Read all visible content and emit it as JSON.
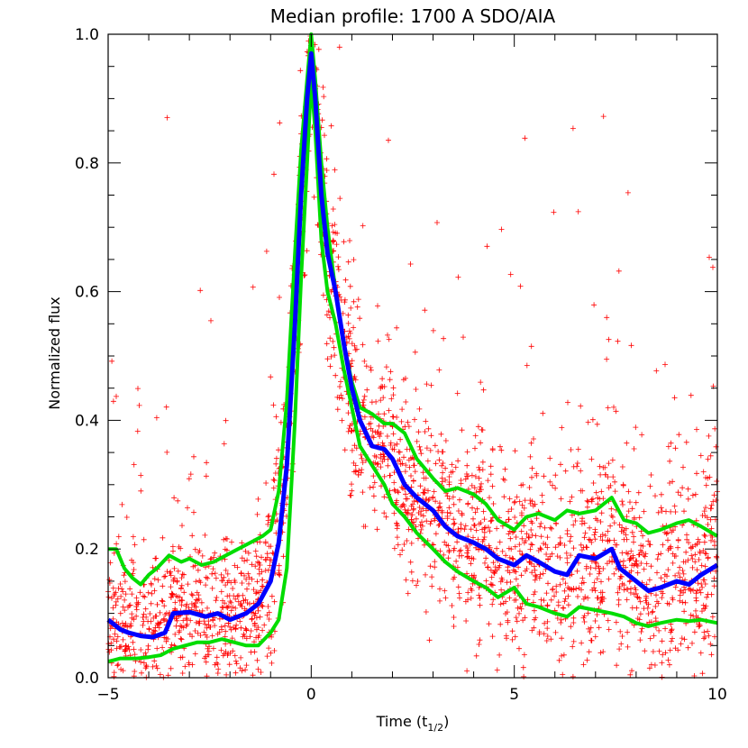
{
  "chart_data": {
    "type": "line",
    "title": "Median profile: 1700 A SDO/AIA",
    "xlabel_main": "Time (t",
    "xlabel_sub": "1/2",
    "xlabel_close": ")",
    "ylabel": "Normalized flux",
    "xlim": [
      -5,
      10
    ],
    "ylim": [
      0.0,
      1.0
    ],
    "x_ticks": [
      "−5",
      "0",
      "5",
      "10"
    ],
    "x_tick_values": [
      -5,
      0,
      5,
      10
    ],
    "y_ticks": [
      "0.0",
      "0.2",
      "0.4",
      "0.6",
      "0.8",
      "1.0"
    ],
    "y_tick_values": [
      0.0,
      0.2,
      0.4,
      0.6,
      0.8,
      1.0
    ],
    "grid": false,
    "series": [
      {
        "color": "#0000ff",
        "x": [
          -5.0,
          -4.7,
          -4.5,
          -4.2,
          -3.9,
          -3.6,
          -3.4,
          -3.0,
          -2.6,
          -2.3,
          -2.0,
          -1.6,
          -1.3,
          -1.0,
          -0.8,
          -0.6,
          -0.4,
          -0.25,
          -0.1,
          0.0,
          0.1,
          0.25,
          0.4,
          0.6,
          0.8,
          1.0,
          1.2,
          1.5,
          1.8,
          2.0,
          2.3,
          2.6,
          3.0,
          3.3,
          3.6,
          4.0,
          4.3,
          4.6,
          5.0,
          5.3,
          5.6,
          6.0,
          6.3,
          6.6,
          7.0,
          7.4,
          7.6,
          8.0,
          8.3,
          8.6,
          9.0,
          9.3,
          9.6,
          10.0
        ],
        "y": [
          0.09,
          0.075,
          0.07,
          0.065,
          0.063,
          0.07,
          0.1,
          0.102,
          0.095,
          0.1,
          0.09,
          0.1,
          0.115,
          0.15,
          0.21,
          0.33,
          0.55,
          0.75,
          0.9,
          0.97,
          0.9,
          0.75,
          0.66,
          0.6,
          0.52,
          0.45,
          0.4,
          0.36,
          0.355,
          0.34,
          0.3,
          0.28,
          0.26,
          0.235,
          0.22,
          0.21,
          0.2,
          0.185,
          0.175,
          0.19,
          0.18,
          0.165,
          0.16,
          0.19,
          0.185,
          0.2,
          0.17,
          0.15,
          0.135,
          0.14,
          0.15,
          0.145,
          0.16,
          0.175
        ]
      },
      {
        "color": "#00dd00",
        "x": [
          -5.0,
          -4.8,
          -4.6,
          -4.4,
          -4.2,
          -4.0,
          -3.8,
          -3.5,
          -3.2,
          -3.0,
          -2.7,
          -2.4,
          -2.1,
          -1.8,
          -1.5,
          -1.2,
          -1.0,
          -0.8,
          -0.6,
          -0.4,
          -0.25,
          -0.1,
          0.0,
          0.1,
          0.25,
          0.4,
          0.6,
          0.8,
          1.0,
          1.2,
          1.5,
          1.8,
          2.0,
          2.3,
          2.6,
          3.0,
          3.3,
          3.6,
          4.0,
          4.3,
          4.6,
          5.0,
          5.3,
          5.6,
          6.0,
          6.3,
          6.6,
          7.0,
          7.4,
          7.7,
          8.0,
          8.3,
          8.6,
          9.0,
          9.3,
          9.6,
          10.0
        ],
        "y": [
          0.2,
          0.2,
          0.17,
          0.155,
          0.145,
          0.16,
          0.17,
          0.19,
          0.18,
          0.185,
          0.175,
          0.18,
          0.19,
          0.2,
          0.21,
          0.22,
          0.23,
          0.29,
          0.43,
          0.66,
          0.82,
          0.93,
          1.0,
          0.93,
          0.8,
          0.7,
          0.6,
          0.52,
          0.46,
          0.42,
          0.41,
          0.395,
          0.395,
          0.38,
          0.34,
          0.31,
          0.29,
          0.295,
          0.285,
          0.27,
          0.245,
          0.23,
          0.25,
          0.255,
          0.245,
          0.26,
          0.255,
          0.26,
          0.28,
          0.245,
          0.24,
          0.225,
          0.23,
          0.24,
          0.245,
          0.235,
          0.22
        ]
      },
      {
        "color": "#00dd00",
        "x": [
          -5.0,
          -4.7,
          -4.3,
          -4.0,
          -3.7,
          -3.4,
          -3.1,
          -2.8,
          -2.5,
          -2.2,
          -1.9,
          -1.6,
          -1.3,
          -1.0,
          -0.8,
          -0.6,
          -0.4,
          -0.25,
          -0.1,
          0.0,
          0.1,
          0.25,
          0.4,
          0.6,
          0.8,
          1.0,
          1.2,
          1.5,
          1.8,
          2.0,
          2.3,
          2.6,
          3.0,
          3.3,
          3.6,
          4.0,
          4.3,
          4.6,
          5.0,
          5.3,
          5.6,
          6.0,
          6.3,
          6.6,
          7.0,
          7.4,
          7.7,
          8.0,
          8.3,
          8.6,
          9.0,
          9.3,
          9.6,
          10.0
        ],
        "y": [
          0.025,
          0.03,
          0.03,
          0.032,
          0.035,
          0.045,
          0.05,
          0.055,
          0.055,
          0.06,
          0.055,
          0.05,
          0.05,
          0.07,
          0.09,
          0.17,
          0.4,
          0.62,
          0.8,
          0.93,
          0.85,
          0.68,
          0.6,
          0.55,
          0.48,
          0.42,
          0.36,
          0.33,
          0.3,
          0.27,
          0.25,
          0.225,
          0.2,
          0.18,
          0.165,
          0.15,
          0.14,
          0.125,
          0.14,
          0.115,
          0.11,
          0.1,
          0.095,
          0.11,
          0.105,
          0.1,
          0.095,
          0.085,
          0.08,
          0.085,
          0.09,
          0.088,
          0.09,
          0.085
        ]
      }
    ],
    "scatter": {
      "color": "#ff0000",
      "marker": "+"
    }
  }
}
